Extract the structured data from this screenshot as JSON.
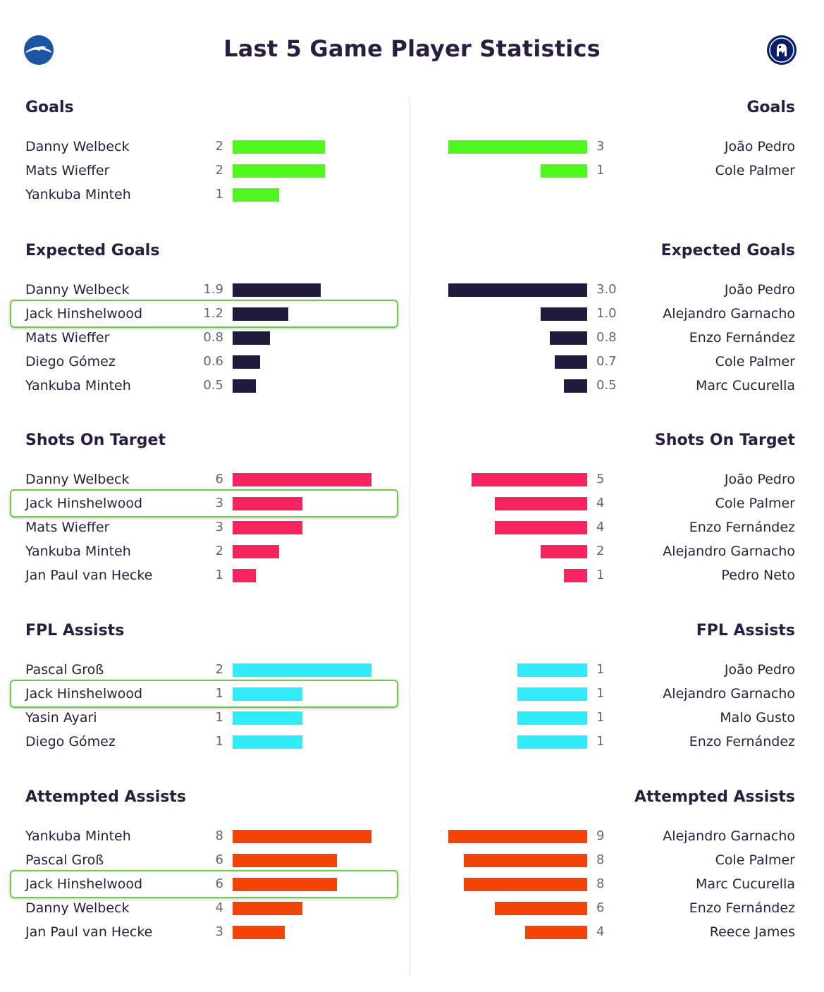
{
  "title": "Last 5 Game Player Statistics",
  "teams": {
    "home": {
      "crest_icon": "brighton-crest-icon",
      "color": "#1d54a6"
    },
    "away": {
      "crest_icon": "chelsea-crest-icon",
      "color": "#0b1e6d"
    }
  },
  "highlight_color": "#6fca4a",
  "chart_data": [
    {
      "type": "bar",
      "title": "Goals",
      "color": "#50f71f",
      "max": 3,
      "home": [
        {
          "player": "Danny Welbeck",
          "value": 2,
          "label": "2"
        },
        {
          "player": "Mats Wieffer",
          "value": 2,
          "label": "2"
        },
        {
          "player": "Yankuba Minteh",
          "value": 1,
          "label": "1"
        }
      ],
      "away": [
        {
          "player": "João Pedro",
          "value": 3,
          "label": "3"
        },
        {
          "player": "Cole Palmer",
          "value": 1,
          "label": "1"
        }
      ]
    },
    {
      "type": "bar",
      "title": "Expected Goals",
      "color": "#221a3d",
      "max": 3.0,
      "home": [
        {
          "player": "Danny Welbeck",
          "value": 1.9,
          "label": "1.9"
        },
        {
          "player": "Jack Hinshelwood",
          "value": 1.2,
          "label": "1.2",
          "highlight": true
        },
        {
          "player": "Mats Wieffer",
          "value": 0.8,
          "label": "0.8"
        },
        {
          "player": "Diego Gómez",
          "value": 0.6,
          "label": "0.6"
        },
        {
          "player": "Yankuba Minteh",
          "value": 0.5,
          "label": "0.5"
        }
      ],
      "away": [
        {
          "player": "João Pedro",
          "value": 3.0,
          "label": "3.0"
        },
        {
          "player": "Alejandro Garnacho",
          "value": 1.0,
          "label": "1.0"
        },
        {
          "player": "Enzo Fernández",
          "value": 0.8,
          "label": "0.8"
        },
        {
          "player": "Cole Palmer",
          "value": 0.7,
          "label": "0.7"
        },
        {
          "player": "Marc Cucurella",
          "value": 0.5,
          "label": "0.5"
        }
      ]
    },
    {
      "type": "bar",
      "title": "Shots On Target",
      "color": "#f5245f",
      "max": 6,
      "home": [
        {
          "player": "Danny Welbeck",
          "value": 6,
          "label": "6"
        },
        {
          "player": "Jack Hinshelwood",
          "value": 3,
          "label": "3",
          "highlight": true
        },
        {
          "player": "Mats Wieffer",
          "value": 3,
          "label": "3"
        },
        {
          "player": "Yankuba Minteh",
          "value": 2,
          "label": "2"
        },
        {
          "player": "Jan Paul van Hecke",
          "value": 1,
          "label": "1"
        }
      ],
      "away": [
        {
          "player": "João Pedro",
          "value": 5,
          "label": "5"
        },
        {
          "player": "Cole Palmer",
          "value": 4,
          "label": "4"
        },
        {
          "player": "Enzo Fernández",
          "value": 4,
          "label": "4"
        },
        {
          "player": "Alejandro Garnacho",
          "value": 2,
          "label": "2"
        },
        {
          "player": "Pedro Neto",
          "value": 1,
          "label": "1"
        }
      ]
    },
    {
      "type": "bar",
      "title": "FPL Assists",
      "color": "#31ecf8",
      "max": 2,
      "home": [
        {
          "player": "Pascal Groß",
          "value": 2,
          "label": "2"
        },
        {
          "player": "Jack Hinshelwood",
          "value": 1,
          "label": "1",
          "highlight": true
        },
        {
          "player": "Yasin Ayari",
          "value": 1,
          "label": "1"
        },
        {
          "player": "Diego Gómez",
          "value": 1,
          "label": "1"
        }
      ],
      "away": [
        {
          "player": "João Pedro",
          "value": 1,
          "label": "1"
        },
        {
          "player": "Alejandro Garnacho",
          "value": 1,
          "label": "1"
        },
        {
          "player": "Malo Gusto",
          "value": 1,
          "label": "1"
        },
        {
          "player": "Enzo Fernández",
          "value": 1,
          "label": "1"
        }
      ]
    },
    {
      "type": "bar",
      "title": "Attempted Assists",
      "color": "#f34407",
      "max": 8,
      "away_max": 9,
      "home": [
        {
          "player": "Yankuba Minteh",
          "value": 8,
          "label": "8"
        },
        {
          "player": "Pascal Groß",
          "value": 6,
          "label": "6"
        },
        {
          "player": "Jack Hinshelwood",
          "value": 6,
          "label": "6",
          "highlight": true
        },
        {
          "player": "Danny Welbeck",
          "value": 4,
          "label": "4"
        },
        {
          "player": "Jan Paul van Hecke",
          "value": 3,
          "label": "3"
        }
      ],
      "away": [
        {
          "player": "Alejandro Garnacho",
          "value": 9,
          "label": "9"
        },
        {
          "player": "Cole Palmer",
          "value": 8,
          "label": "8"
        },
        {
          "player": "Marc Cucurella",
          "value": 8,
          "label": "8"
        },
        {
          "player": "Enzo Fernández",
          "value": 6,
          "label": "6"
        },
        {
          "player": "Reece James",
          "value": 4,
          "label": "4"
        }
      ]
    }
  ]
}
